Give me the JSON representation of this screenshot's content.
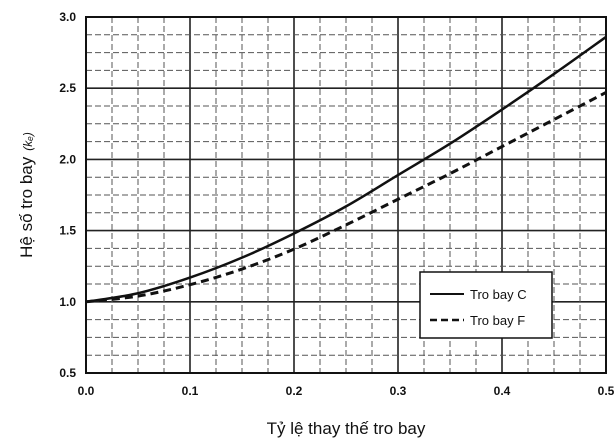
{
  "chart_data": {
    "type": "line",
    "title": "",
    "xlabel": "Tỷ lệ thay thế tro bay",
    "ylabel": "Hệ số tro bay",
    "ylabel_symbol": "(kₑ)",
    "xlim": [
      0.0,
      0.5
    ],
    "ylim": [
      0.5,
      3.0
    ],
    "x_ticks": [
      0.0,
      0.1,
      0.2,
      0.3,
      0.4,
      0.5
    ],
    "x_tick_labels": [
      "0.0",
      "0.1",
      "0.2",
      "0.3",
      "0.4",
      "0.5"
    ],
    "y_ticks": [
      0.5,
      1.0,
      1.5,
      2.0,
      2.5,
      3.0
    ],
    "y_tick_labels": [
      "0.5",
      "1.0",
      "1.5",
      "2.0",
      "2.5",
      "3.0"
    ],
    "grid": true,
    "legend_position": "lower-right",
    "series": [
      {
        "name": "Tro bay C",
        "style": "solid",
        "color": "#111111",
        "x": [
          0.0,
          0.05,
          0.1,
          0.15,
          0.2,
          0.25,
          0.3,
          0.35,
          0.4,
          0.45,
          0.5
        ],
        "y": [
          1.0,
          1.06,
          1.17,
          1.31,
          1.48,
          1.67,
          1.89,
          2.11,
          2.35,
          2.6,
          2.86
        ]
      },
      {
        "name": "Tro bay F",
        "style": "dashed",
        "color": "#111111",
        "x": [
          0.0,
          0.05,
          0.1,
          0.15,
          0.2,
          0.25,
          0.3,
          0.35,
          0.4,
          0.45,
          0.5
        ],
        "y": [
          1.0,
          1.04,
          1.12,
          1.23,
          1.37,
          1.54,
          1.72,
          1.9,
          2.09,
          2.28,
          2.47
        ]
      }
    ]
  }
}
